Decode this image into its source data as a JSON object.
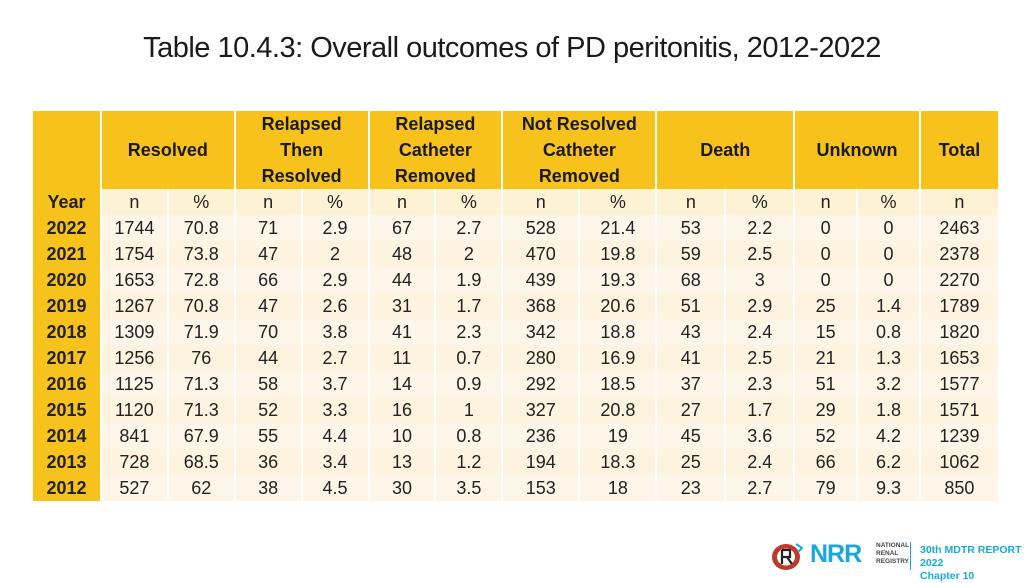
{
  "title": "Table 10.4.3: Overall outcomes of PD peritonitis, 2012-2022",
  "headers": {
    "resolved": "Resolved",
    "relapsed_then_resolved": [
      "Relapsed",
      "Then",
      "Resolved"
    ],
    "relapsed_catheter_removed": [
      "Relapsed",
      "Catheter",
      "Removed"
    ],
    "not_resolved_catheter_removed": [
      "Not Resolved",
      "Catheter",
      "Removed"
    ],
    "death": "Death",
    "unknown": "Unknown",
    "total": "Total"
  },
  "subheader": [
    "Year",
    "n",
    "%",
    "n",
    "%",
    "n",
    "%",
    "n",
    "%",
    "n",
    "%",
    "n",
    "%",
    "n"
  ],
  "rows": [
    [
      "2022",
      "1744",
      "70.8",
      "71",
      "2.9",
      "67",
      "2.7",
      "528",
      "21.4",
      "53",
      "2.2",
      "0",
      "0",
      "2463"
    ],
    [
      "2021",
      "1754",
      "73.8",
      "47",
      "2",
      "48",
      "2",
      "470",
      "19.8",
      "59",
      "2.5",
      "0",
      "0",
      "2378"
    ],
    [
      "2020",
      "1653",
      "72.8",
      "66",
      "2.9",
      "44",
      "1.9",
      "439",
      "19.3",
      "68",
      "3",
      "0",
      "0",
      "2270"
    ],
    [
      "2019",
      "1267",
      "70.8",
      "47",
      "2.6",
      "31",
      "1.7",
      "368",
      "20.6",
      "51",
      "2.9",
      "25",
      "1.4",
      "1789"
    ],
    [
      "2018",
      "1309",
      "71.9",
      "70",
      "3.8",
      "41",
      "2.3",
      "342",
      "18.8",
      "43",
      "2.4",
      "15",
      "0.8",
      "1820"
    ],
    [
      "2017",
      "1256",
      "76",
      "44",
      "2.7",
      "11",
      "0.7",
      "280",
      "16.9",
      "41",
      "2.5",
      "21",
      "1.3",
      "1653"
    ],
    [
      "2016",
      "1125",
      "71.3",
      "58",
      "3.7",
      "14",
      "0.9",
      "292",
      "18.5",
      "37",
      "2.3",
      "51",
      "3.2",
      "1577"
    ],
    [
      "2015",
      "1120",
      "71.3",
      "52",
      "3.3",
      "16",
      "1",
      "327",
      "20.8",
      "27",
      "1.7",
      "29",
      "1.8",
      "1571"
    ],
    [
      "2014",
      "841",
      "67.9",
      "55",
      "4.4",
      "10",
      "0.8",
      "236",
      "19",
      "45",
      "3.6",
      "52",
      "4.2",
      "1239"
    ],
    [
      "2013",
      "728",
      "68.5",
      "36",
      "3.4",
      "13",
      "1.2",
      "194",
      "18.3",
      "25",
      "2.4",
      "66",
      "6.2",
      "1062"
    ],
    [
      "2012",
      "527",
      "62",
      "38",
      "4.5",
      "30",
      "3.5",
      "153",
      "18",
      "23",
      "2.7",
      "79",
      "9.3",
      "850"
    ]
  ],
  "footer": {
    "logo_text": "NRR",
    "logo_subtext": [
      "NATIONAL",
      "RENAL",
      "REGISTRY"
    ],
    "report_line1": "30th MDTR REPORT 2022",
    "report_line2": "Chapter 10"
  }
}
